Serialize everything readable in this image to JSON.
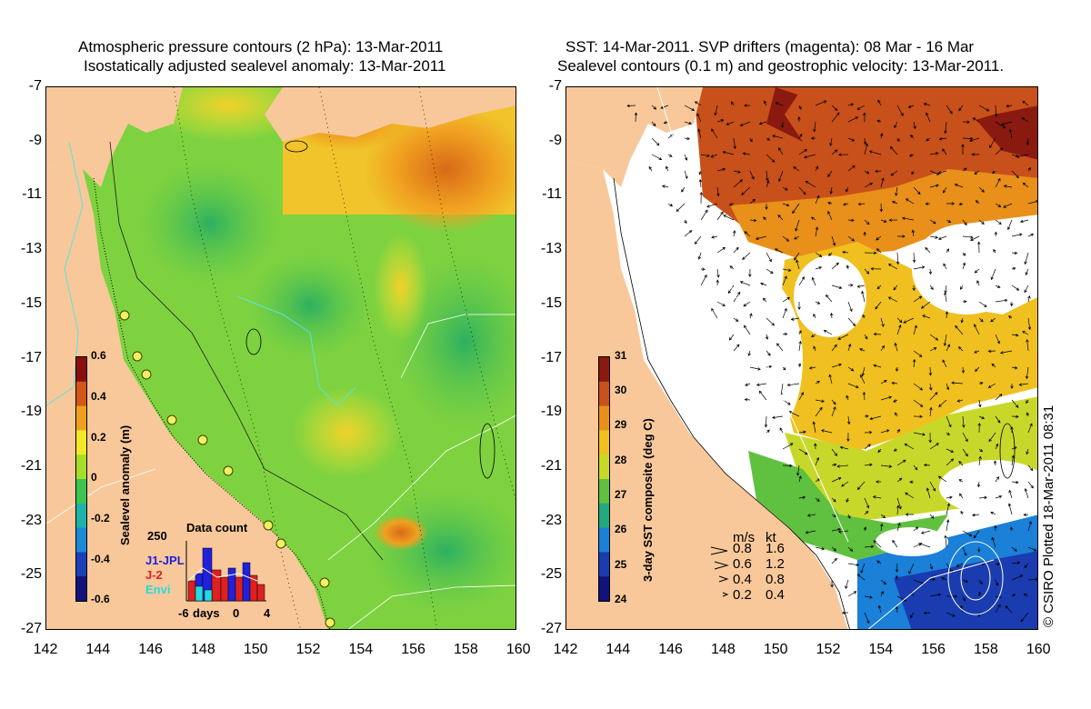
{
  "left_panel": {
    "title_line1": "Atmospheric pressure contours (2 hPa): 13-Mar-2011",
    "title_line2": "Isostatically adjusted sealevel anomaly: 13-Mar-2011",
    "colorbar": {
      "label": "Sealevel anomaly (m)",
      "ticks": [
        "0.6",
        "0.4",
        "0.2",
        "0",
        "-0.2",
        "-0.4",
        "-0.6"
      ],
      "colors": [
        "#8a0e0e",
        "#d2561a",
        "#f0a020",
        "#f2e82a",
        "#a5de2a",
        "#3cc650",
        "#1fb2a8",
        "#1a8ad8",
        "#1a40b8",
        "#12127a"
      ]
    },
    "inset": {
      "title": "Data count",
      "y_max_label": "250",
      "x_labels": [
        "-6",
        "days",
        "0",
        "4"
      ],
      "series": [
        {
          "name": "J1-JPL",
          "color": "#2020dd"
        },
        {
          "name": "J-2",
          "color": "#dd2020"
        },
        {
          "name": "Envi",
          "color": "#22dddd"
        }
      ]
    }
  },
  "right_panel": {
    "title_line1": "SST: 14-Mar-2011. SVP drifters (magenta): 08 Mar - 16 Mar",
    "title_line2": "Sealevel contours (0.1 m) and geostrophic velocity: 13-Mar-2011.",
    "colorbar": {
      "label": "3-day SST composite (deg C)",
      "ticks": [
        "31",
        "30",
        "29",
        "28",
        "27",
        "26",
        "25",
        "24"
      ],
      "colors": [
        "#8a1a10",
        "#c8501a",
        "#e8901a",
        "#f0c020",
        "#c8d82a",
        "#60c040",
        "#20a880",
        "#1a80d8",
        "#1a3cb0",
        "#12127a"
      ]
    },
    "velocity_legend": {
      "header_ms": "m/s",
      "header_kt": "kt",
      "rows": [
        {
          "ms": "0.8",
          "kt": "1.6"
        },
        {
          "ms": "0.6",
          "kt": "1.2"
        },
        {
          "ms": "0.4",
          "kt": "0.8"
        },
        {
          "ms": "0.2",
          "kt": "0.4"
        }
      ]
    }
  },
  "axes": {
    "lat_ticks": [
      "-7",
      "-9",
      "-11",
      "-13",
      "-15",
      "-17",
      "-19",
      "-21",
      "-23",
      "-25",
      "-27"
    ],
    "lon_ticks": [
      "142",
      "144",
      "146",
      "148",
      "150",
      "152",
      "154",
      "156",
      "158",
      "160"
    ]
  },
  "credit": "© CSIRO Plotted 18-Mar-2011 08:31",
  "colors": {
    "land": "#f8c89a",
    "cloud": "#ffffff",
    "shelf": "#5ee0e0"
  }
}
